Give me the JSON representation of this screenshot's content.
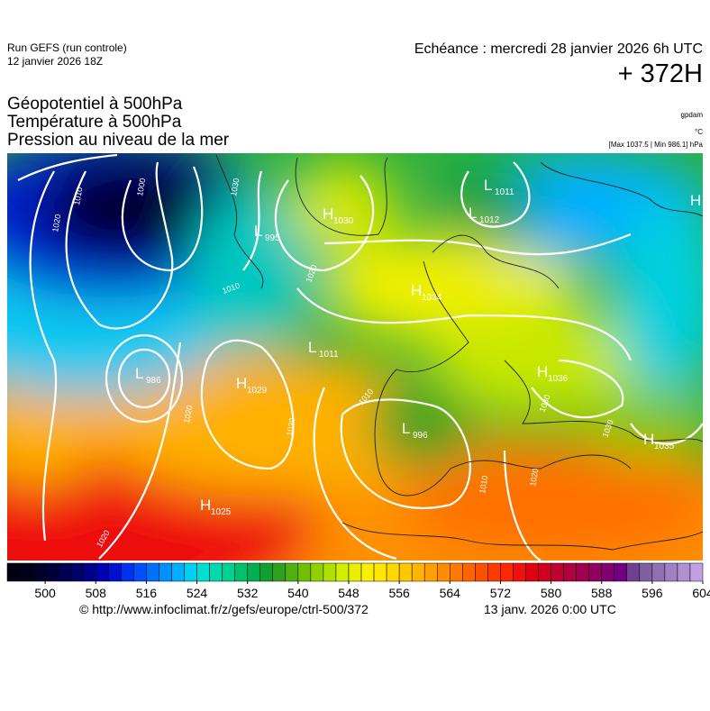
{
  "header": {
    "run": "Run GEFS (run controle)",
    "run_date": "12 janvier 2026 18Z",
    "valid": "Echéance : mercredi 28 janvier 2026 6h UTC",
    "lead": "+ 372H",
    "fields": [
      "Géopotentiel à 500hPa",
      "Température à 500hPa",
      "Pression au niveau de la mer"
    ],
    "units": [
      "gpdam",
      "°C",
      "[Max 1037.5 | Min 986.1] hPa"
    ]
  },
  "map": {
    "centers": [
      {
        "type": "H",
        "value": "1030"
      },
      {
        "type": "L",
        "value": "995"
      },
      {
        "type": "H",
        "value": "1034"
      },
      {
        "type": "L",
        "value": "1011"
      },
      {
        "type": "L",
        "value": "1012"
      },
      {
        "type": "L",
        "value": "1011"
      },
      {
        "type": "L",
        "value": "986"
      },
      {
        "type": "H",
        "value": "1029"
      },
      {
        "type": "H",
        "value": "1036"
      },
      {
        "type": "L",
        "value": "996"
      },
      {
        "type": "H",
        "value": "1035"
      },
      {
        "type": "H",
        "value": "1025"
      },
      {
        "type": "H",
        "value": ""
      }
    ],
    "isobar_labels": [
      "1020",
      "1010",
      "1000",
      "1030",
      "1010",
      "1020",
      "1010",
      "1020",
      "1020",
      "1030",
      "1030",
      "1010",
      "1020",
      "1020"
    ]
  },
  "colorbar": {
    "range": [
      494,
      604
    ],
    "ticks": [
      500,
      508,
      516,
      524,
      532,
      540,
      548,
      556,
      564,
      572,
      580,
      588,
      596,
      604
    ],
    "colors": [
      "#000010",
      "#000018",
      "#000028",
      "#000038",
      "#000050",
      "#000068",
      "#00008a",
      "#0000b0",
      "#0010d0",
      "#0030f0",
      "#0050ff",
      "#0070ff",
      "#0090ff",
      "#00b0ff",
      "#00d0f0",
      "#00e0d0",
      "#00d8b0",
      "#00d090",
      "#00c070",
      "#00b050",
      "#10a030",
      "#30a020",
      "#50b010",
      "#70c000",
      "#90d000",
      "#b0e000",
      "#d0f000",
      "#e8f000",
      "#f8f000",
      "#ffe800",
      "#ffd800",
      "#ffc800",
      "#ffb400",
      "#ffa000",
      "#ff8c00",
      "#ff7800",
      "#ff6400",
      "#ff5000",
      "#ff3c00",
      "#ff2800",
      "#f01010",
      "#e00010",
      "#d00020",
      "#c00030",
      "#b00040",
      "#a00050",
      "#900060",
      "#800070",
      "#700080",
      "#704090",
      "#8060a0",
      "#9070b0",
      "#a080c0",
      "#b090d0",
      "#c0a0e0"
    ]
  },
  "footer": {
    "source": "© http://www.infoclimat.fr/z/gefs/europe/ctrl-500/372",
    "issued": "13 janv. 2026  0:00 UTC"
  }
}
